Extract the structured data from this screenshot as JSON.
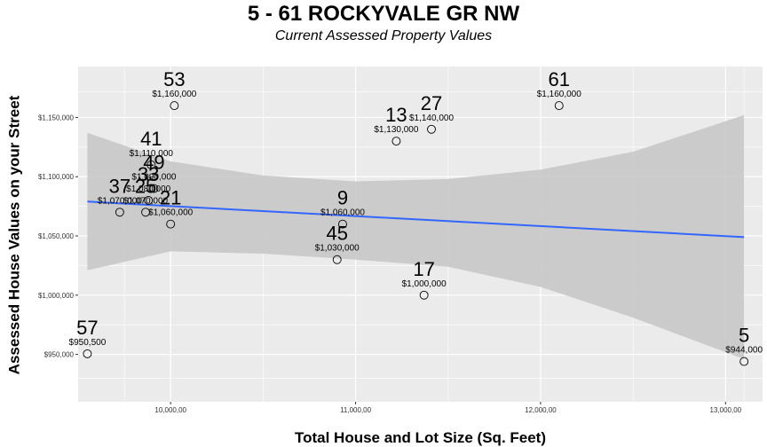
{
  "chart_data": {
    "type": "scatter",
    "title": "5 - 61  ROCKYVALE GR NW",
    "subtitle": "Current Assessed Property Values",
    "xlabel": "Total House and Lot Size (Sq. Feet)",
    "ylabel": "Assessed House Values on your Street",
    "xlim": [
      9500,
      13200
    ],
    "ylim": [
      910000,
      1193000
    ],
    "x_ticks": [
      10000,
      11000,
      12000,
      13000
    ],
    "x_tick_labels": [
      "10,000,00",
      "11,000,00",
      "12,000,00",
      "13,000,00"
    ],
    "y_ticks": [
      950000,
      1000000,
      1050000,
      1100000,
      1150000
    ],
    "y_tick_labels": [
      "$950,000",
      "$1,000,000",
      "$1,050,000",
      "$1,100,000",
      "$1,150,000"
    ],
    "grid": true,
    "points": [
      {
        "label": "53",
        "value_label": "$1,160,000",
        "x": 10020,
        "y": 1160000
      },
      {
        "label": "61",
        "value_label": "$1,160,000",
        "x": 12100,
        "y": 1160000
      },
      {
        "label": "27",
        "value_label": "$1,140,000",
        "x": 11410,
        "y": 1140000
      },
      {
        "label": "13",
        "value_label": "$1,130,000",
        "x": 11220,
        "y": 1130000
      },
      {
        "label": "41",
        "value_label": "$1,110,000",
        "x": 9895,
        "y": 1110000
      },
      {
        "label": "49",
        "value_label": "$1,090,000",
        "x": 9910,
        "y": 1090000
      },
      {
        "label": "33",
        "value_label": "$1,080,000",
        "x": 9880,
        "y": 1080000
      },
      {
        "label": "37",
        "value_label": "$1,070,000",
        "x": 9725,
        "y": 1070000
      },
      {
        "label": "25",
        "value_label": "$1,070,000",
        "x": 9865,
        "y": 1070000
      },
      {
        "label": "21",
        "value_label": "$1,060,000",
        "x": 10000,
        "y": 1060000
      },
      {
        "label": "9",
        "value_label": "$1,060,000",
        "x": 10930,
        "y": 1060000
      },
      {
        "label": "45",
        "value_label": "$1,030,000",
        "x": 10900,
        "y": 1030000
      },
      {
        "label": "17",
        "value_label": "$1,000,000",
        "x": 11370,
        "y": 1000000
      },
      {
        "label": "57",
        "value_label": "$950,500",
        "x": 9550,
        "y": 950500
      },
      {
        "label": "5",
        "value_label": "$944,000",
        "x": 13100,
        "y": 944000
      }
    ],
    "trend_line": {
      "type": "linear",
      "x": [
        9550,
        13100
      ],
      "y": [
        1079000,
        1049000
      ],
      "color": "#3366ff"
    },
    "confidence_band": {
      "x": [
        9550,
        10000,
        10500,
        11000,
        11500,
        12000,
        12500,
        13100
      ],
      "upper": [
        1137000,
        1113000,
        1101000,
        1096000,
        1098000,
        1106000,
        1121000,
        1152000
      ],
      "lower": [
        1021000,
        1037000,
        1035000,
        1030000,
        1024000,
        1007000,
        981000,
        946000
      ]
    },
    "colors": {
      "panel": "#ebebeb",
      "grid": "#ffffff",
      "band": "#c8c8c8"
    }
  }
}
